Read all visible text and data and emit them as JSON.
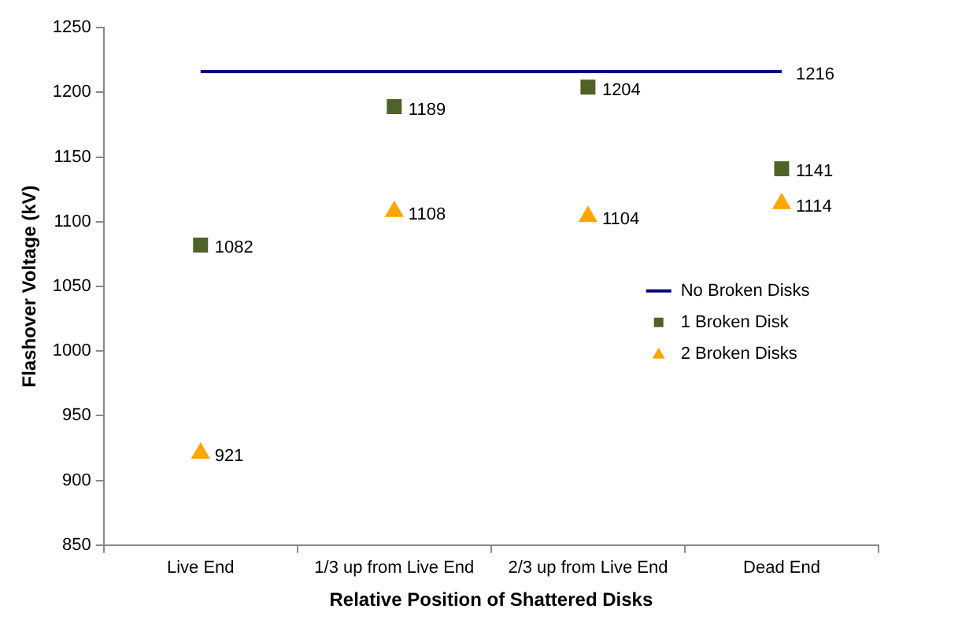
{
  "chart_data": {
    "type": "line",
    "xlabel": "Relative Position of Shattered Disks",
    "ylabel": "Flashover Voltage (kV)",
    "categories": [
      "Live End",
      "1/3 up from Live End",
      "2/3 up from Live End",
      "Dead End"
    ],
    "ylim": [
      850,
      1250
    ],
    "yticks": [
      850,
      900,
      950,
      1000,
      1050,
      1100,
      1150,
      1200,
      1250
    ],
    "grid": false,
    "legend": "right",
    "series": [
      {
        "name": "No Broken Disks",
        "marker": "none",
        "color": "#000080",
        "values": [
          1216,
          1216,
          1216,
          1216
        ],
        "value_labels": [
          null,
          null,
          null,
          "1216"
        ]
      },
      {
        "name": "1 Broken Disk",
        "type": "scatter",
        "marker": "square",
        "color": "#4f6228",
        "values": [
          1082,
          1189,
          1204,
          1141
        ],
        "value_labels": [
          "1082",
          "1189",
          "1204",
          "1141"
        ]
      },
      {
        "name": "2 Broken Disks",
        "type": "scatter",
        "marker": "triangle",
        "color": "#ffa500",
        "values": [
          921,
          1108,
          1104,
          1114
        ],
        "value_labels": [
          "921",
          "1108",
          "1104",
          "1114"
        ]
      }
    ]
  }
}
